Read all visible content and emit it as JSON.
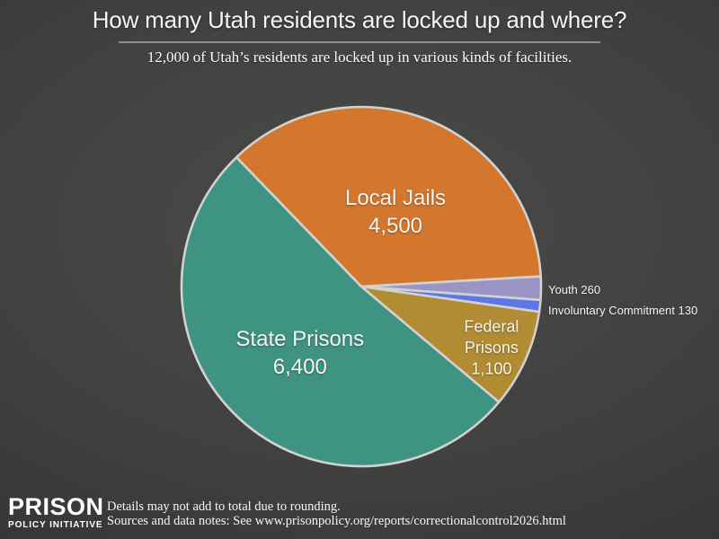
{
  "header": {
    "title": "How many Utah residents are locked up and where?",
    "subtitle": "12,000 of Utah’s residents are locked up in various kinds of facilities."
  },
  "logo": {
    "name": "PRISON",
    "subname": "POLICY INITIATIVE"
  },
  "footer": {
    "note": "Details may not add to total due to rounding.",
    "source": "Sources and data notes: See www.prisonpolicy.org/reports/correctionalcontrol2026.html"
  },
  "chart_data": {
    "type": "pie",
    "title": "How many Utah residents are locked up and where?",
    "subtitle": "12,000 of Utah’s residents are locked up in various kinds of facilities.",
    "total_display": "12,000",
    "start_angle_deg": -134,
    "direction": "clockwise",
    "rim_color": "#d3d2d0",
    "background_color": "#3e3e3d",
    "legend": "none",
    "slices": [
      {
        "label": "Local Jails",
        "value": 4500,
        "value_display": "4,500",
        "color": "#d4772e",
        "label_placement": "inside"
      },
      {
        "label": "Youth",
        "value": 260,
        "value_display": "260",
        "color": "#9b95c6",
        "label_placement": "outside-right"
      },
      {
        "label": "Involuntary Commitment",
        "value": 130,
        "value_display": "130",
        "color": "#5d78e6",
        "label_placement": "outside-right"
      },
      {
        "label": "Federal Prisons",
        "value": 1100,
        "value_display": "1,100",
        "color": "#b18c33",
        "label_placement": "inside"
      },
      {
        "label": "State Prisons",
        "value": 6400,
        "value_display": "6,400",
        "color": "#3f9383",
        "label_placement": "inside"
      }
    ]
  }
}
